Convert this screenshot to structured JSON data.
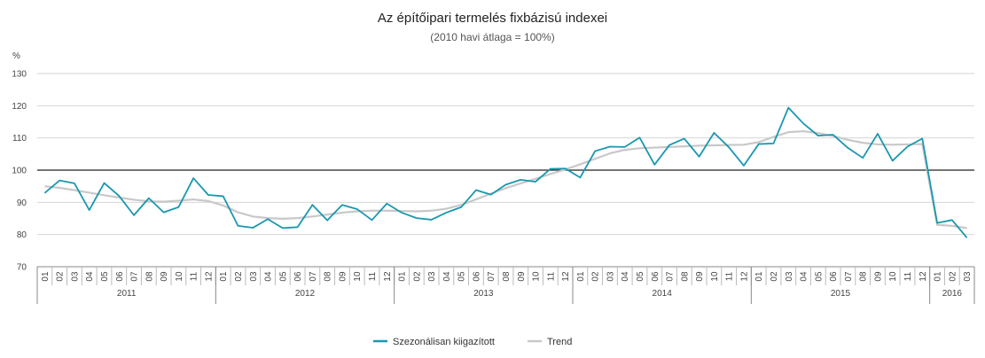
{
  "chart_data": {
    "type": "line",
    "title": "Az építőipari termelés fixbázisú indexei",
    "subtitle": "(2010 havi átlaga = 100%)",
    "ylabel": "%",
    "ylim": [
      70,
      130
    ],
    "yticks": [
      70,
      80,
      90,
      100,
      110,
      120,
      130
    ],
    "reference_line": 100,
    "grid": true,
    "legend_position": "bottom-center",
    "x_months": [
      "01",
      "02",
      "03",
      "04",
      "05",
      "06",
      "07",
      "08",
      "09",
      "10",
      "11",
      "12",
      "01",
      "02",
      "03",
      "04",
      "05",
      "06",
      "07",
      "08",
      "09",
      "10",
      "11",
      "12",
      "01",
      "02",
      "03",
      "04",
      "05",
      "06",
      "07",
      "08",
      "09",
      "10",
      "11",
      "12",
      "01",
      "02",
      "03",
      "04",
      "05",
      "06",
      "07",
      "08",
      "09",
      "10",
      "11",
      "12",
      "01",
      "02",
      "03",
      "04",
      "05",
      "06",
      "07",
      "08",
      "09",
      "10",
      "11",
      "12",
      "01",
      "02",
      "03"
    ],
    "x_years": [
      {
        "label": "2011",
        "count": 12
      },
      {
        "label": "2012",
        "count": 12
      },
      {
        "label": "2013",
        "count": 12
      },
      {
        "label": "2014",
        "count": 12
      },
      {
        "label": "2015",
        "count": 12
      },
      {
        "label": "2016",
        "count": 3
      }
    ],
    "series": [
      {
        "name": "Szezonálisan kiigazított",
        "color": "#1a97b0",
        "values": [
          92.9,
          96.8,
          95.9,
          87.6,
          96.0,
          92.0,
          86.0,
          91.3,
          86.9,
          88.5,
          97.5,
          92.3,
          91.9,
          82.7,
          82.1,
          84.8,
          82.0,
          82.3,
          89.2,
          84.4,
          89.2,
          87.9,
          84.5,
          89.6,
          86.8,
          85.1,
          84.6,
          86.8,
          88.5,
          93.8,
          92.4,
          95.5,
          97.0,
          96.4,
          100.4,
          100.5,
          97.7,
          105.9,
          107.3,
          107.2,
          110.1,
          101.7,
          107.8,
          109.8,
          104.2,
          111.6,
          107.1,
          101.4,
          108.1,
          108.3,
          119.4,
          114.5,
          110.7,
          111.0,
          106.9,
          103.8,
          111.3,
          102.9,
          107.3,
          109.8,
          83.6,
          84.5,
          79.0
        ]
      },
      {
        "name": "Trend",
        "color": "#c8c8c8",
        "values": [
          95.0,
          94.5,
          93.8,
          93.0,
          92.2,
          91.5,
          90.8,
          90.3,
          90.2,
          90.5,
          90.9,
          90.4,
          89.0,
          86.9,
          85.6,
          85.1,
          84.9,
          85.1,
          85.6,
          86.2,
          86.8,
          87.2,
          87.4,
          87.4,
          87.3,
          87.2,
          87.4,
          88.0,
          89.2,
          90.9,
          92.7,
          94.4,
          95.9,
          97.3,
          98.8,
          100.2,
          101.8,
          103.5,
          105.2,
          106.3,
          106.8,
          107.0,
          107.2,
          107.4,
          107.6,
          107.7,
          107.8,
          107.9,
          108.7,
          110.3,
          111.8,
          112.1,
          111.5,
          110.6,
          109.4,
          108.5,
          108.0,
          107.9,
          108.0,
          108.1,
          83.0,
          82.7,
          82.0
        ]
      }
    ]
  }
}
